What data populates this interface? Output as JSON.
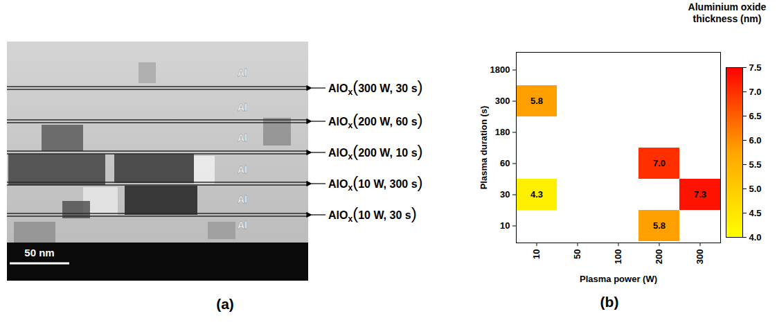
{
  "chart_data": {
    "type": "heatmap",
    "x_label": "Plasma power (W)",
    "y_label": "Plasma duration (s)",
    "x_categories": [
      "10",
      "50",
      "100",
      "200",
      "300"
    ],
    "y_categories": [
      "10",
      "30",
      "60",
      "180",
      "300",
      "1800"
    ],
    "cells": {
      "x": [
        "10",
        "200",
        "10",
        "200",
        "300"
      ],
      "y": [
        "300",
        "60",
        "30",
        "10",
        "30"
      ],
      "values": [
        5.8,
        7.0,
        4.3,
        5.8,
        7.3
      ],
      "value_labels": [
        "5.8",
        "7.0",
        "4.3",
        "5.8",
        "7.3"
      ]
    },
    "colorbar": {
      "title": "Aluminium oxide thickness (nm)",
      "range": [
        4,
        7.5
      ],
      "ticks": [
        {
          "value": 4,
          "label": "4.0"
        },
        {
          "value": 4.5,
          "label": "4.5"
        },
        {
          "value": 5,
          "label": "5.0"
        },
        {
          "value": 5.5,
          "label": "5.5"
        },
        {
          "value": 6,
          "label": "6.0"
        },
        {
          "value": 6.5,
          "label": "6.5"
        },
        {
          "value": 7,
          "label": "7.0"
        },
        {
          "value": 7.5,
          "label": "7.5"
        }
      ]
    },
    "data_labels": true
  },
  "panel_labels": [
    "(a)",
    "(b)"
  ],
  "image_panel": {
    "layers": [
      "Al",
      "Al",
      "Al",
      "Al",
      "Al",
      "Al"
    ],
    "oxide_layers": [
      {
        "text": "AlO",
        "subscript": "x",
        "condition": "(300 W, 30 s)"
      },
      {
        "text": "AlO",
        "subscript": "x",
        "condition": "(200 W, 60 s)"
      },
      {
        "text": "AlO",
        "subscript": "x",
        "condition": "(200 W, 10 s)"
      },
      {
        "text": "AlO",
        "subscript": "x",
        "condition": "(10 W, 300 s)"
      },
      {
        "text": "AlO",
        "subscript": "x",
        "condition": "(10 W, 30 s)"
      }
    ],
    "scale_bar": "50 nm"
  }
}
